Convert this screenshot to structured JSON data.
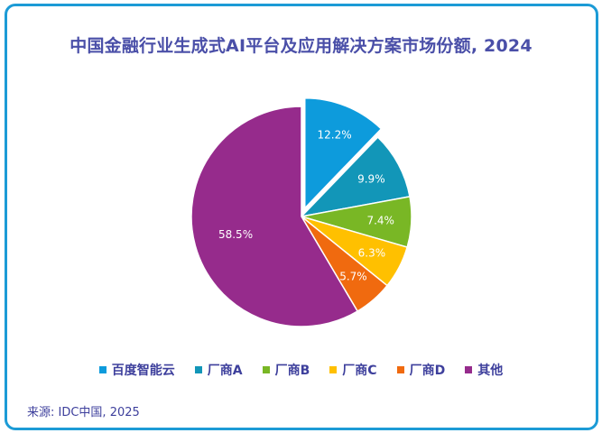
{
  "title": "中国金融行业生成式AI平台及应用解决方案市场份额, 2024",
  "source": "来源: IDC中国, 2025",
  "colors": {
    "frame": "#1c9bd6",
    "title": "#4a4fa8",
    "label": "#ffffff"
  },
  "chart_data": {
    "type": "pie",
    "title": "中国金融行业生成式AI平台及应用解决方案市场份额, 2024",
    "categories": [
      "百度智能云",
      "厂商A",
      "厂商B",
      "厂商C",
      "厂商D",
      "其他"
    ],
    "values": [
      12.2,
      9.9,
      7.4,
      6.3,
      5.7,
      58.5
    ],
    "labels": [
      "12.2%",
      "9.9%",
      "7.4%",
      "6.3%",
      "5.7%",
      "58.5%"
    ],
    "colors": [
      "#0d9bdc",
      "#1296b8",
      "#79b725",
      "#ffc000",
      "#f06a0f",
      "#962b8c"
    ],
    "exploded": [
      "百度智能云"
    ],
    "legend_position": "bottom",
    "start_angle_deg": 0,
    "direction": "clockwise"
  }
}
